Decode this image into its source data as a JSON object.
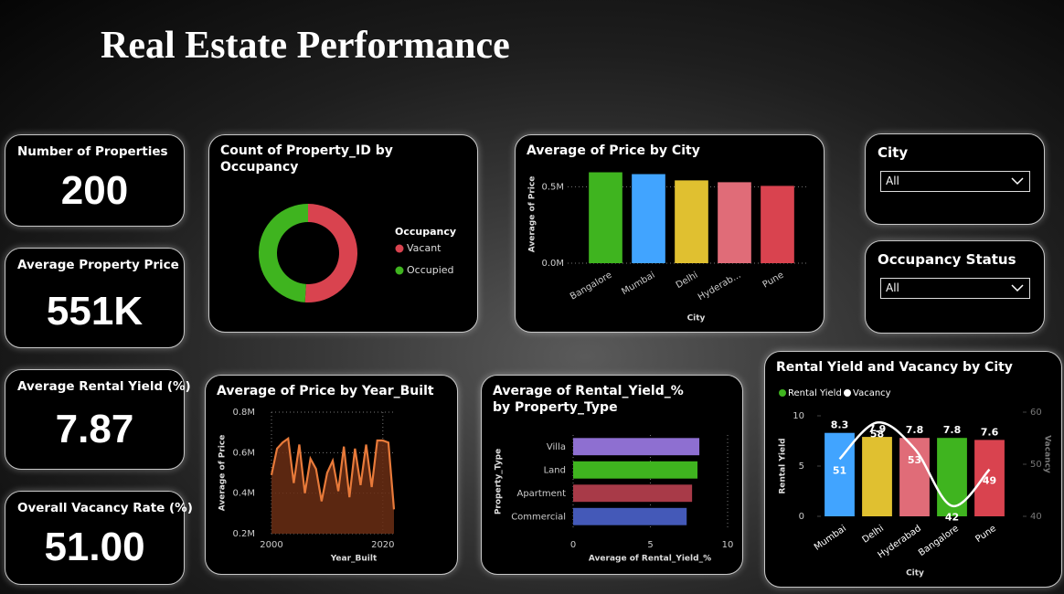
{
  "title": "Real Estate Performance",
  "kpis": [
    {
      "label": "Number of Properties",
      "value": "200"
    },
    {
      "label": "Average Property Price",
      "value": "551K"
    },
    {
      "label": "Average Rental Yield (%)",
      "value": "7.87"
    },
    {
      "label": "Overall Vacancy Rate (%)",
      "value": "51.00"
    }
  ],
  "slicers": [
    {
      "label": "City",
      "value": "All"
    },
    {
      "label": "Occupancy Status",
      "value": "All"
    }
  ],
  "chart_data": [
    {
      "type": "donut",
      "title": "Count of Property_ID by Occupancy",
      "legend_title": "Occupancy",
      "categories": [
        "Vacant",
        "Occupied"
      ],
      "values": [
        102,
        98
      ],
      "colors": [
        "#d9434f",
        "#3fb41f"
      ]
    },
    {
      "type": "bar",
      "title": "Average of Price by City",
      "xlabel": "City",
      "ylabel": "Average of Price",
      "categories": [
        "Bangalore",
        "Mumbai",
        "Delhi",
        "Hyderab...",
        "Pune"
      ],
      "values": [
        595000,
        583000,
        542000,
        530000,
        506000
      ],
      "colors": [
        "#3fb41f",
        "#41a4ff",
        "#e0c030",
        "#e06c78",
        "#d9434f"
      ],
      "ylim": [
        0,
        640000
      ],
      "yticks": [
        {
          "value": 0,
          "label": "0.0M"
        },
        {
          "value": 500000,
          "label": "0.5M"
        }
      ],
      "grid": true
    },
    {
      "type": "area",
      "title": "Average of Price by Year_Built",
      "xlabel": "Year_Built",
      "ylabel": "Average of Price",
      "x": [
        2000,
        2001,
        2002,
        2003,
        2004,
        2005,
        2006,
        2007,
        2008,
        2009,
        2010,
        2011,
        2012,
        2013,
        2014,
        2015,
        2016,
        2017,
        2018,
        2019,
        2020,
        2021,
        2022
      ],
      "values": [
        490000,
        620000,
        650000,
        670000,
        450000,
        640000,
        400000,
        570000,
        520000,
        360000,
        500000,
        560000,
        410000,
        630000,
        380000,
        620000,
        440000,
        640000,
        430000,
        660000,
        660000,
        650000,
        320000
      ],
      "xlim": [
        2000,
        2022
      ],
      "xticks": [
        2000,
        2020
      ],
      "ylim": [
        200000,
        800000
      ],
      "yticks": [
        {
          "value": 200000,
          "label": "0.2M"
        },
        {
          "value": 400000,
          "label": "0.4M"
        },
        {
          "value": 600000,
          "label": "0.6M"
        },
        {
          "value": 800000,
          "label": "0.8M"
        }
      ],
      "color": "#e87a3a",
      "fill": "#6b2e14",
      "grid": true
    },
    {
      "type": "hbar",
      "title": "Average of Rental_Yield_% by Property_Type",
      "xlabel": "Average of Rental_Yield_%",
      "ylabel": "Property_Type",
      "categories": [
        "Villa",
        "Land",
        "Apartment",
        "Commercial"
      ],
      "values": [
        8.17,
        8.05,
        7.7,
        7.35
      ],
      "colors": [
        "#8e6fd1",
        "#3fb41f",
        "#a83a48",
        "#4459b8"
      ],
      "xlim": [
        0,
        10
      ],
      "xticks": [
        0,
        5,
        10
      ],
      "grid": true
    },
    {
      "type": "combo",
      "title": "Rental Yield and Vacancy by City",
      "xlabel": "City",
      "ylabel": "Rental Yield",
      "y2label": "Vacancy",
      "categories": [
        "Mumbai",
        "Delhi",
        "Hyderabad",
        "Bangalore",
        "Pune"
      ],
      "series": [
        {
          "name": "Rental Yield",
          "color": "#3fb41f",
          "colors": [
            "#41a4ff",
            "#e0c030",
            "#e06c78",
            "#3fb41f",
            "#d9434f"
          ],
          "values": [
            8.3,
            7.9,
            7.8,
            7.8,
            7.6
          ]
        },
        {
          "name": "Vacancy",
          "color": "#ffffff",
          "axis": "y2",
          "values": [
            51,
            58,
            53,
            42,
            49
          ]
        }
      ],
      "ylim": [
        0,
        10
      ],
      "yticks": [
        0,
        5,
        10
      ],
      "y2lim": [
        40,
        60
      ],
      "y2ticks": [
        40,
        50,
        60
      ]
    }
  ]
}
